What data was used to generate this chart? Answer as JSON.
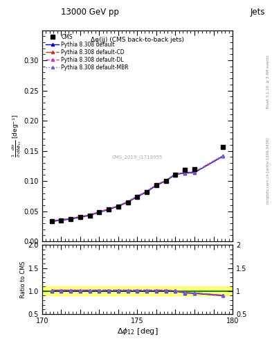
{
  "title_top": "13000 GeV pp",
  "title_right": "Jets",
  "plot_title": "Δφ(jj) (CMS back-to-back jets)",
  "xlabel": "Δφ_{12} [deg]",
  "ylabel_ratio": "Ratio to CMS",
  "watermark": "CMS_2019_I1719955",
  "right_label": "mcplots.cern.ch [arXiv:1306.3436]",
  "right_label2": "Rivet 3.1.10, ≥ 3.4M events",
  "xlim": [
    170,
    180
  ],
  "ylim_main": [
    0.0,
    0.35
  ],
  "ylim_ratio": [
    0.5,
    2.0
  ],
  "yticks_main": [
    0.0,
    0.05,
    0.1,
    0.15,
    0.2,
    0.25,
    0.3
  ],
  "yticks_ratio": [
    0.5,
    1.0,
    1.5,
    2.0
  ],
  "cms_x": [
    170.5,
    171.0,
    171.5,
    172.0,
    172.5,
    173.0,
    173.5,
    174.0,
    174.5,
    175.0,
    175.5,
    176.0,
    176.5,
    177.0,
    177.5,
    178.0,
    179.5
  ],
  "cms_y": [
    0.033,
    0.035,
    0.037,
    0.04,
    0.043,
    0.048,
    0.053,
    0.058,
    0.065,
    0.074,
    0.082,
    0.093,
    0.1,
    0.111,
    0.119,
    0.12,
    0.157
  ],
  "py_default_x": [
    170.5,
    171.0,
    171.5,
    172.0,
    172.5,
    173.0,
    173.5,
    174.0,
    174.5,
    175.0,
    175.5,
    176.0,
    176.5,
    177.0,
    177.5,
    178.0,
    179.5
  ],
  "py_default_y": [
    0.033,
    0.035,
    0.037,
    0.04,
    0.043,
    0.048,
    0.053,
    0.058,
    0.065,
    0.074,
    0.082,
    0.093,
    0.1,
    0.111,
    0.113,
    0.114,
    0.141
  ],
  "py_cd_x": [
    170.5,
    171.0,
    171.5,
    172.0,
    172.5,
    173.0,
    173.5,
    174.0,
    174.5,
    175.0,
    175.5,
    176.0,
    176.5,
    177.0,
    177.5,
    178.0,
    179.5
  ],
  "py_cd_y": [
    0.034,
    0.036,
    0.038,
    0.041,
    0.044,
    0.049,
    0.054,
    0.059,
    0.066,
    0.075,
    0.083,
    0.094,
    0.101,
    0.112,
    0.114,
    0.115,
    0.142
  ],
  "py_dl_x": [
    170.5,
    171.0,
    171.5,
    172.0,
    172.5,
    173.0,
    173.5,
    174.0,
    174.5,
    175.0,
    175.5,
    176.0,
    176.5,
    177.0,
    177.5,
    178.0,
    179.5
  ],
  "py_dl_y": [
    0.034,
    0.036,
    0.038,
    0.041,
    0.044,
    0.049,
    0.054,
    0.059,
    0.066,
    0.075,
    0.083,
    0.094,
    0.101,
    0.112,
    0.114,
    0.115,
    0.142
  ],
  "py_mbr_x": [
    170.5,
    171.0,
    171.5,
    172.0,
    172.5,
    173.0,
    173.5,
    174.0,
    174.5,
    175.0,
    175.5,
    176.0,
    176.5,
    177.0,
    177.5,
    178.0,
    179.5
  ],
  "py_mbr_y": [
    0.034,
    0.036,
    0.038,
    0.041,
    0.044,
    0.049,
    0.054,
    0.059,
    0.066,
    0.075,
    0.083,
    0.094,
    0.101,
    0.112,
    0.114,
    0.115,
    0.142
  ],
  "color_default": "#0000cc",
  "color_cd": "#cc3333",
  "color_dl": "#cc33cc",
  "color_mbr": "#6666cc",
  "color_cms": "#000000",
  "ratio_default": [
    1.0,
    1.0,
    1.0,
    1.0,
    1.0,
    1.0,
    1.0,
    1.0,
    1.0,
    1.0,
    1.0,
    1.0,
    1.0,
    1.0,
    0.96,
    0.95,
    0.9
  ],
  "ratio_cd": [
    1.02,
    1.02,
    1.02,
    1.02,
    1.02,
    1.02,
    1.02,
    1.02,
    1.02,
    1.02,
    1.02,
    1.02,
    1.02,
    1.01,
    0.97,
    0.96,
    0.91
  ],
  "ratio_dl": [
    1.02,
    1.02,
    1.02,
    1.02,
    1.02,
    1.02,
    1.02,
    1.02,
    1.02,
    1.02,
    1.02,
    1.02,
    1.02,
    1.01,
    0.97,
    0.96,
    0.91
  ],
  "ratio_mbr": [
    1.02,
    1.02,
    1.02,
    1.02,
    1.02,
    1.02,
    1.02,
    1.02,
    1.02,
    1.02,
    1.02,
    1.02,
    1.02,
    1.01,
    0.97,
    0.96,
    0.91
  ]
}
